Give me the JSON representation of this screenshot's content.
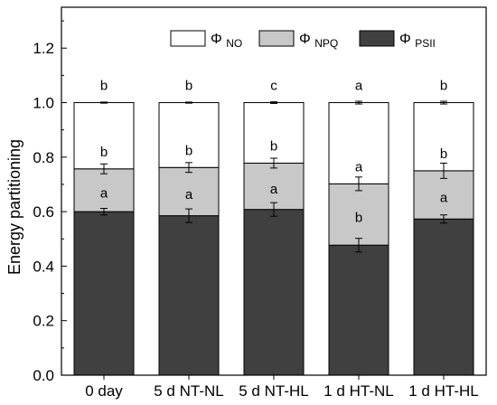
{
  "chart_data": {
    "type": "bar",
    "stacked": true,
    "title": "",
    "xlabel": "",
    "ylabel": "Energy partitioning",
    "ylim": [
      0,
      1.35
    ],
    "yticks": [
      "0.0",
      "0.2",
      "0.4",
      "0.6",
      "0.8",
      "1.0",
      "1.2"
    ],
    "categories": [
      "0 day",
      "5 d NT-NL",
      "5 d NT-HL",
      "1 d HT-NL",
      "1 d HT-HL"
    ],
    "series": [
      {
        "name": "Φ PSII",
        "legend_symbol": "Φ",
        "legend_sub": "PSII",
        "color": "#404040",
        "values": [
          0.6,
          0.585,
          0.608,
          0.477,
          0.573
        ],
        "errors": [
          0.012,
          0.025,
          0.025,
          0.025,
          0.015
        ],
        "significance": [
          "a",
          "a",
          "a",
          "b",
          "a"
        ]
      },
      {
        "name": "Φ NPQ",
        "legend_symbol": "Φ",
        "legend_sub": "NPQ",
        "color": "#c8c8c8",
        "values": [
          0.157,
          0.177,
          0.17,
          0.225,
          0.177
        ],
        "errors": [
          0.018,
          0.018,
          0.018,
          0.025,
          0.028
        ],
        "significance": [
          "b",
          "b",
          "b",
          "a",
          "b"
        ]
      },
      {
        "name": "Φ NO",
        "legend_symbol": "Φ",
        "legend_sub": "NO",
        "color": "#ffffff",
        "values": [
          0.243,
          0.238,
          0.222,
          0.298,
          0.25
        ],
        "errors": [
          0.002,
          0.002,
          0.003,
          0.005,
          0.005
        ],
        "significance": [
          "b",
          "b",
          "c",
          "a",
          "b"
        ]
      }
    ],
    "legend": "top-right",
    "grid": false
  }
}
